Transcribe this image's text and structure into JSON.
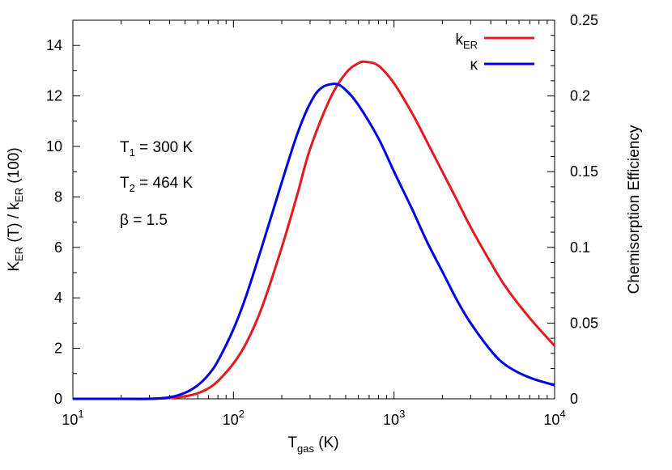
{
  "chart_data": {
    "type": "line",
    "x_scale": "log",
    "xlim": [
      10,
      10000
    ],
    "ylim_left": [
      0,
      15
    ],
    "ylim_right": [
      0,
      0.25
    ],
    "grid": false,
    "legend_placement": "top-right",
    "xlabel": {
      "main": "T",
      "sub": "gas",
      "rest": " (K)"
    },
    "ylabel_left": {
      "p1": "K",
      "s1": "ER",
      "p2": " (T) / k",
      "s2": "ER",
      "p3": " (100)"
    },
    "ylabel_right": "Chemisorption Efficiency",
    "x_ticks": [
      {
        "value": 10,
        "base": "10",
        "exp": "1"
      },
      {
        "value": 100,
        "base": "10",
        "exp": "2"
      },
      {
        "value": 1000,
        "base": "10",
        "exp": "3"
      },
      {
        "value": 10000,
        "base": "10",
        "exp": "4"
      }
    ],
    "y_left_ticks": [
      {
        "value": 0,
        "label": "0"
      },
      {
        "value": 2,
        "label": "2"
      },
      {
        "value": 4,
        "label": "4"
      },
      {
        "value": 6,
        "label": "6"
      },
      {
        "value": 8,
        "label": "8"
      },
      {
        "value": 10,
        "label": "10"
      },
      {
        "value": 12,
        "label": "12"
      },
      {
        "value": 14,
        "label": "14"
      }
    ],
    "y_right_ticks": [
      {
        "value": 0,
        "label": "0"
      },
      {
        "value": 0.05,
        "label": "0.05"
      },
      {
        "value": 0.1,
        "label": "0.1"
      },
      {
        "value": 0.15,
        "label": "0.15"
      },
      {
        "value": 0.2,
        "label": "0.2"
      },
      {
        "value": 0.25,
        "label": "0.25"
      }
    ],
    "annotations": [
      {
        "pre": "T",
        "sub": "1",
        "post": " = 300 K"
      },
      {
        "pre": "T",
        "sub": "2",
        "post": " = 464 K"
      },
      {
        "pre": "β = 1.5",
        "sub": "",
        "post": ""
      }
    ],
    "series": [
      {
        "name": "k",
        "name_sub": "ER",
        "color": "#e41a1c",
        "axis": "left",
        "x": [
          10,
          20,
          30,
          40,
          50,
          60,
          70,
          80,
          100,
          120,
          150,
          200,
          250,
          300,
          400,
          500,
          600,
          670,
          800,
          1000,
          1300,
          1600,
          2000,
          2500,
          3000,
          4000,
          5000,
          7000,
          10000
        ],
        "y": [
          0,
          0,
          0,
          0.03,
          0.1,
          0.22,
          0.42,
          0.7,
          1.4,
          2.2,
          3.6,
          6.0,
          8.1,
          9.9,
          11.9,
          12.9,
          13.3,
          13.35,
          13.2,
          12.5,
          11.3,
          10.2,
          9.0,
          7.8,
          6.8,
          5.4,
          4.4,
          3.2,
          2.1
        ]
      },
      {
        "name": "κ",
        "name_sub": "",
        "color": "#0000e6",
        "axis": "right",
        "x": [
          10,
          20,
          30,
          40,
          50,
          60,
          70,
          80,
          100,
          120,
          150,
          200,
          250,
          300,
          350,
          430,
          500,
          600,
          800,
          1000,
          1300,
          1600,
          2000,
          2500,
          3000,
          4000,
          5000,
          7000,
          10000
        ],
        "y": [
          0,
          0,
          0,
          0.001,
          0.004,
          0.009,
          0.016,
          0.025,
          0.046,
          0.068,
          0.1,
          0.143,
          0.175,
          0.195,
          0.205,
          0.208,
          0.204,
          0.194,
          0.172,
          0.15,
          0.125,
          0.104,
          0.084,
          0.064,
          0.05,
          0.032,
          0.022,
          0.014,
          0.009
        ]
      }
    ]
  }
}
